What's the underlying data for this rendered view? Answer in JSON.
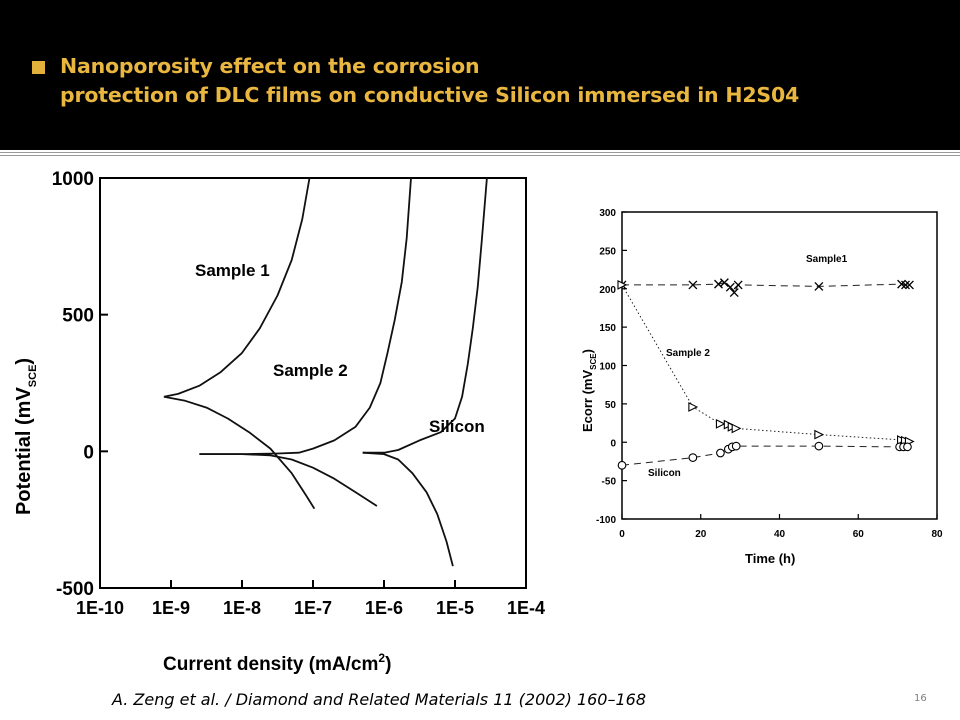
{
  "slide": {
    "title_line1": "Nanoporosity effect on the corrosion",
    "title_line2": "protection of DLC films on conductive Silicon immersed in H2S04",
    "citation": "A. Zeng et al. / Diamond and Related Materials 11 (2002) 160–168",
    "page_number": "16",
    "accent_color": "#e9b640"
  },
  "chart_data": [
    {
      "type": "line",
      "title": "",
      "xlabel": "Current density (mA/cm",
      "xlabel_sup": "2",
      "xlabel_close": ")",
      "ylabel": "Potential (mV",
      "ylabel_sub": "SCE",
      "ylabel_close": ")",
      "xscale": "log",
      "xlim": [
        -10,
        -4
      ],
      "ylim": [
        -500,
        1000
      ],
      "x_ticks": [
        -10,
        -9,
        -8,
        -7,
        -6,
        -5,
        -4
      ],
      "x_tick_labels": [
        "1E-10",
        "1E-9",
        "1E-8",
        "1E-7",
        "1E-6",
        "1E-5",
        "1E-4"
      ],
      "y_ticks": [
        -500,
        0,
        500,
        1000
      ],
      "y_tick_labels": [
        "-500",
        "0",
        "500",
        "1000"
      ],
      "series": [
        {
          "name": "Sample 1",
          "anodic": [
            [
              -9.1,
              200
            ],
            [
              -8.9,
              210
            ],
            [
              -8.6,
              240
            ],
            [
              -8.3,
              290
            ],
            [
              -8.0,
              360
            ],
            [
              -7.75,
              450
            ],
            [
              -7.5,
              570
            ],
            [
              -7.3,
              700
            ],
            [
              -7.15,
              850
            ],
            [
              -7.05,
              1000
            ]
          ],
          "cathodic": [
            [
              -9.1,
              200
            ],
            [
              -8.8,
              185
            ],
            [
              -8.5,
              160
            ],
            [
              -8.2,
              120
            ],
            [
              -7.9,
              70
            ],
            [
              -7.6,
              10
            ],
            [
              -7.3,
              -80
            ],
            [
              -7.1,
              -160
            ],
            [
              -6.98,
              -210
            ]
          ]
        },
        {
          "name": "Sample 2",
          "anodic": [
            [
              -8.6,
              -10
            ],
            [
              -8.0,
              -10
            ],
            [
              -7.5,
              -8
            ],
            [
              -7.2,
              -5
            ],
            [
              -7.0,
              10
            ],
            [
              -6.7,
              40
            ],
            [
              -6.4,
              90
            ],
            [
              -6.2,
              160
            ],
            [
              -6.05,
              250
            ],
            [
              -5.95,
              360
            ],
            [
              -5.85,
              480
            ],
            [
              -5.75,
              620
            ],
            [
              -5.68,
              780
            ],
            [
              -5.62,
              1000
            ]
          ],
          "cathodic": [
            [
              -8.6,
              -10
            ],
            [
              -8.0,
              -10
            ],
            [
              -7.6,
              -15
            ],
            [
              -7.3,
              -30
            ],
            [
              -7.0,
              -60
            ],
            [
              -6.7,
              -100
            ],
            [
              -6.4,
              -150
            ],
            [
              -6.1,
              -200
            ]
          ]
        },
        {
          "name": "Silicon",
          "anodic": [
            [
              -6.3,
              -5
            ],
            [
              -6.0,
              -5
            ],
            [
              -5.8,
              5
            ],
            [
              -5.5,
              40
            ],
            [
              -5.2,
              70
            ],
            [
              -5.0,
              120
            ],
            [
              -4.9,
              200
            ],
            [
              -4.82,
              320
            ],
            [
              -4.75,
              450
            ],
            [
              -4.68,
              600
            ],
            [
              -4.62,
              780
            ],
            [
              -4.55,
              1000
            ]
          ],
          "cathodic": [
            [
              -6.3,
              -5
            ],
            [
              -6.0,
              -10
            ],
            [
              -5.8,
              -30
            ],
            [
              -5.6,
              -80
            ],
            [
              -5.4,
              -150
            ],
            [
              -5.25,
              -230
            ],
            [
              -5.12,
              -330
            ],
            [
              -5.03,
              -420
            ]
          ]
        }
      ],
      "annotations": [
        "Sample 1",
        "Sample 2",
        "Silicon"
      ]
    },
    {
      "type": "scatter",
      "title": "",
      "xlabel": "Time (h)",
      "ylabel": "Ecorr (mV",
      "ylabel_sub": "SCE",
      "ylabel_close": ")",
      "xlim": [
        0,
        80
      ],
      "ylim": [
        -100,
        300
      ],
      "x_ticks": [
        0,
        20,
        40,
        60,
        80
      ],
      "x_tick_labels": [
        "0",
        "20",
        "40",
        "60",
        "80"
      ],
      "y_ticks": [
        -100,
        -50,
        0,
        50,
        100,
        150,
        200,
        250,
        300
      ],
      "y_tick_labels": [
        "-100",
        "-50",
        "0",
        "50",
        "100",
        "150",
        "200",
        "250",
        "300"
      ],
      "series": [
        {
          "name": "Sample1",
          "marker": "x",
          "line": "dashed",
          "x": [
            0,
            18,
            24.5,
            26,
            27.5,
            28.5,
            29.5,
            50,
            71,
            72,
            73
          ],
          "y": [
            205,
            205,
            206,
            208,
            202,
            195,
            205,
            203,
            206,
            205,
            205
          ]
        },
        {
          "name": "Sample 2",
          "marker": "triangle-right",
          "line": "dotted",
          "x": [
            0,
            18,
            25,
            27,
            28,
            29,
            50,
            71,
            72,
            73
          ],
          "y": [
            205,
            46,
            24,
            23,
            20,
            18,
            10,
            3,
            2,
            1
          ]
        },
        {
          "name": "Silicon",
          "marker": "circle",
          "line": "dashed",
          "x": [
            0,
            18,
            25,
            27,
            28,
            29,
            50,
            70.5,
            71.5,
            72.5
          ],
          "y": [
            -30,
            -20,
            -14,
            -9,
            -6,
            -5,
            -5,
            -6,
            -6,
            -6
          ]
        }
      ],
      "annotations": [
        "Sample1",
        "Sample 2",
        "Silicon"
      ]
    }
  ]
}
